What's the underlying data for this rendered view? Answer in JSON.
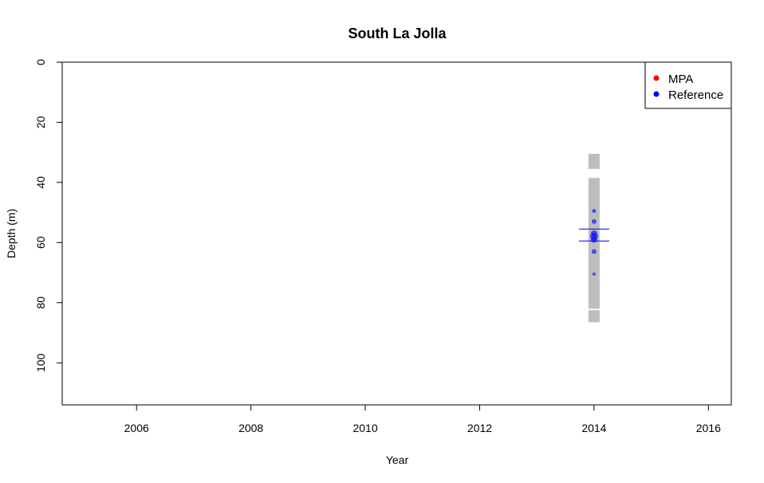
{
  "chart_data": {
    "type": "scatter",
    "title": "South La Jolla",
    "xlabel": "Year",
    "ylabel": "Depth (m)",
    "xlim": [
      2004.7,
      2016.4
    ],
    "ylim": [
      0,
      114
    ],
    "y_reversed": true,
    "x_ticks": [
      "2006",
      "2008",
      "2010",
      "2012",
      "2014",
      "2016"
    ],
    "y_ticks": [
      "0",
      "20",
      "40",
      "60",
      "80",
      "100"
    ],
    "legend": {
      "position": "top-right",
      "entries": [
        {
          "label": "MPA",
          "color": "#ff0000"
        },
        {
          "label": "Reference",
          "color": "#0000ff"
        }
      ]
    },
    "depth_range_bars": [
      {
        "x": 2014,
        "y_from": 30.5,
        "y_to": 35.5,
        "color": "#bebebe"
      },
      {
        "x": 2014,
        "y_from": 38.5,
        "y_to": 82,
        "color": "#bebebe"
      },
      {
        "x": 2014,
        "y_from": 82.5,
        "y_to": 86.5,
        "color": "#bebebe"
      }
    ],
    "mean_lines": [
      {
        "x": 2014,
        "y": 55.5,
        "color": "#0000ff"
      },
      {
        "x": 2014,
        "y": 59.5,
        "color": "#0000ff"
      }
    ],
    "series": [
      {
        "name": "Reference",
        "color": "#0000ff",
        "points": [
          {
            "x": 2014,
            "y": 49.5,
            "size": 1
          },
          {
            "x": 2014,
            "y": 53,
            "size": 1.2
          },
          {
            "x": 2014,
            "y": 57,
            "size": 1.6
          },
          {
            "x": 2014,
            "y": 58,
            "size": 2
          },
          {
            "x": 2014,
            "y": 59,
            "size": 1.6
          },
          {
            "x": 2014,
            "y": 63,
            "size": 1.2
          },
          {
            "x": 2014,
            "y": 70.5,
            "size": 0.8
          }
        ]
      },
      {
        "name": "MPA",
        "color": "#ff0000",
        "points": []
      }
    ]
  }
}
